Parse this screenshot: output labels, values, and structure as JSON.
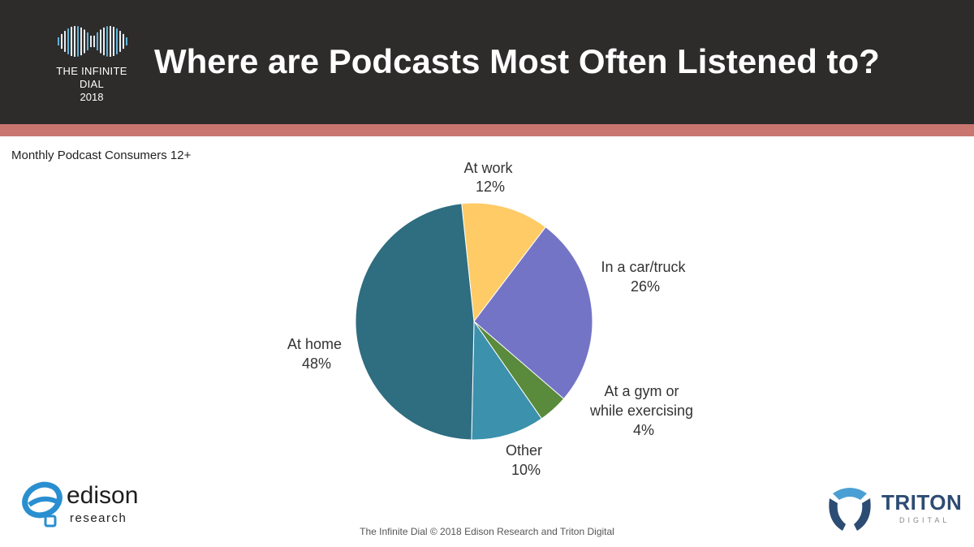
{
  "header": {
    "title": "Where are Podcasts Most Often Listened to?",
    "logo_name": "THE INFINITE DIAL",
    "logo_year": "2018",
    "background_color": "#2e2b2b",
    "accent_color": "#c97670"
  },
  "subtitle": "Monthly Podcast Consumers 12+",
  "chart_data": {
    "type": "pie",
    "start_angle_deg": -6,
    "direction": "clockwise",
    "slices": [
      {
        "label": "At work",
        "value_label": "12%",
        "value": 12,
        "color": "#ffcb66"
      },
      {
        "label": "In a car/truck",
        "value_label": "26%",
        "value": 26,
        "color": "#7474c6"
      },
      {
        "label": "At a gym or while exercising",
        "value_label": "4%",
        "value": 4,
        "color": "#5a8a3c"
      },
      {
        "label": "Other",
        "value_label": "10%",
        "value": 10,
        "color": "#3c91ad"
      },
      {
        "label": "At home",
        "value_label": "48%",
        "value": 48,
        "color": "#2f6d80"
      }
    ]
  },
  "logos": {
    "left_brand": "edison",
    "left_sub": "research",
    "right_brand": "TRITON",
    "right_sub": "DIGITAL"
  },
  "footer": "The Infinite Dial   © 2018 Edison Research and Triton Digital"
}
